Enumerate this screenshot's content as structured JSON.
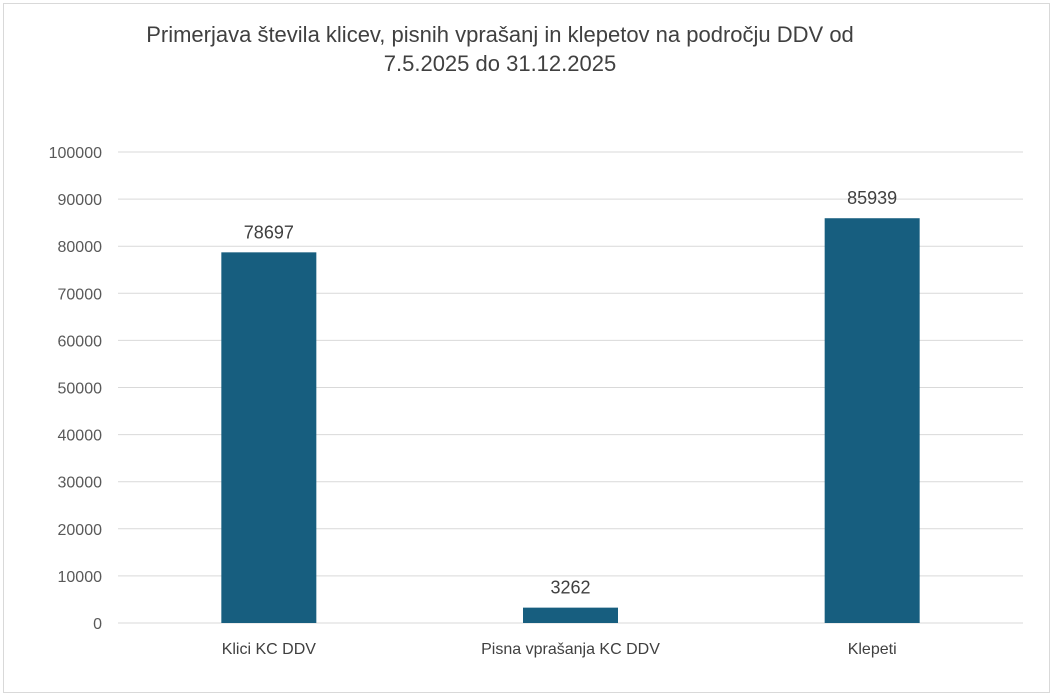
{
  "chart_data": {
    "type": "bar",
    "title_line1": "Primerjava števila klicev, pisnih vprašanj in klepetov na področju DDV od",
    "title_line2": "7.5.2025 do 31.12.2025",
    "categories": [
      "Klici KC DDV",
      "Pisna vprašanja KC DDV",
      "Klepeti"
    ],
    "values": [
      78697,
      3262,
      85939
    ],
    "data_labels": [
      "78697",
      "3262",
      "85939"
    ],
    "ylim": [
      0,
      100000
    ],
    "yticks": [
      0,
      10000,
      20000,
      30000,
      40000,
      50000,
      60000,
      70000,
      80000,
      90000,
      100000
    ],
    "ytick_labels": [
      "0",
      "10000",
      "20000",
      "30000",
      "40000",
      "50000",
      "60000",
      "70000",
      "80000",
      "90000",
      "100000"
    ],
    "grid": true,
    "legend": "none",
    "bar_color": "#175e7f",
    "grid_color": "#d9d9d9"
  }
}
